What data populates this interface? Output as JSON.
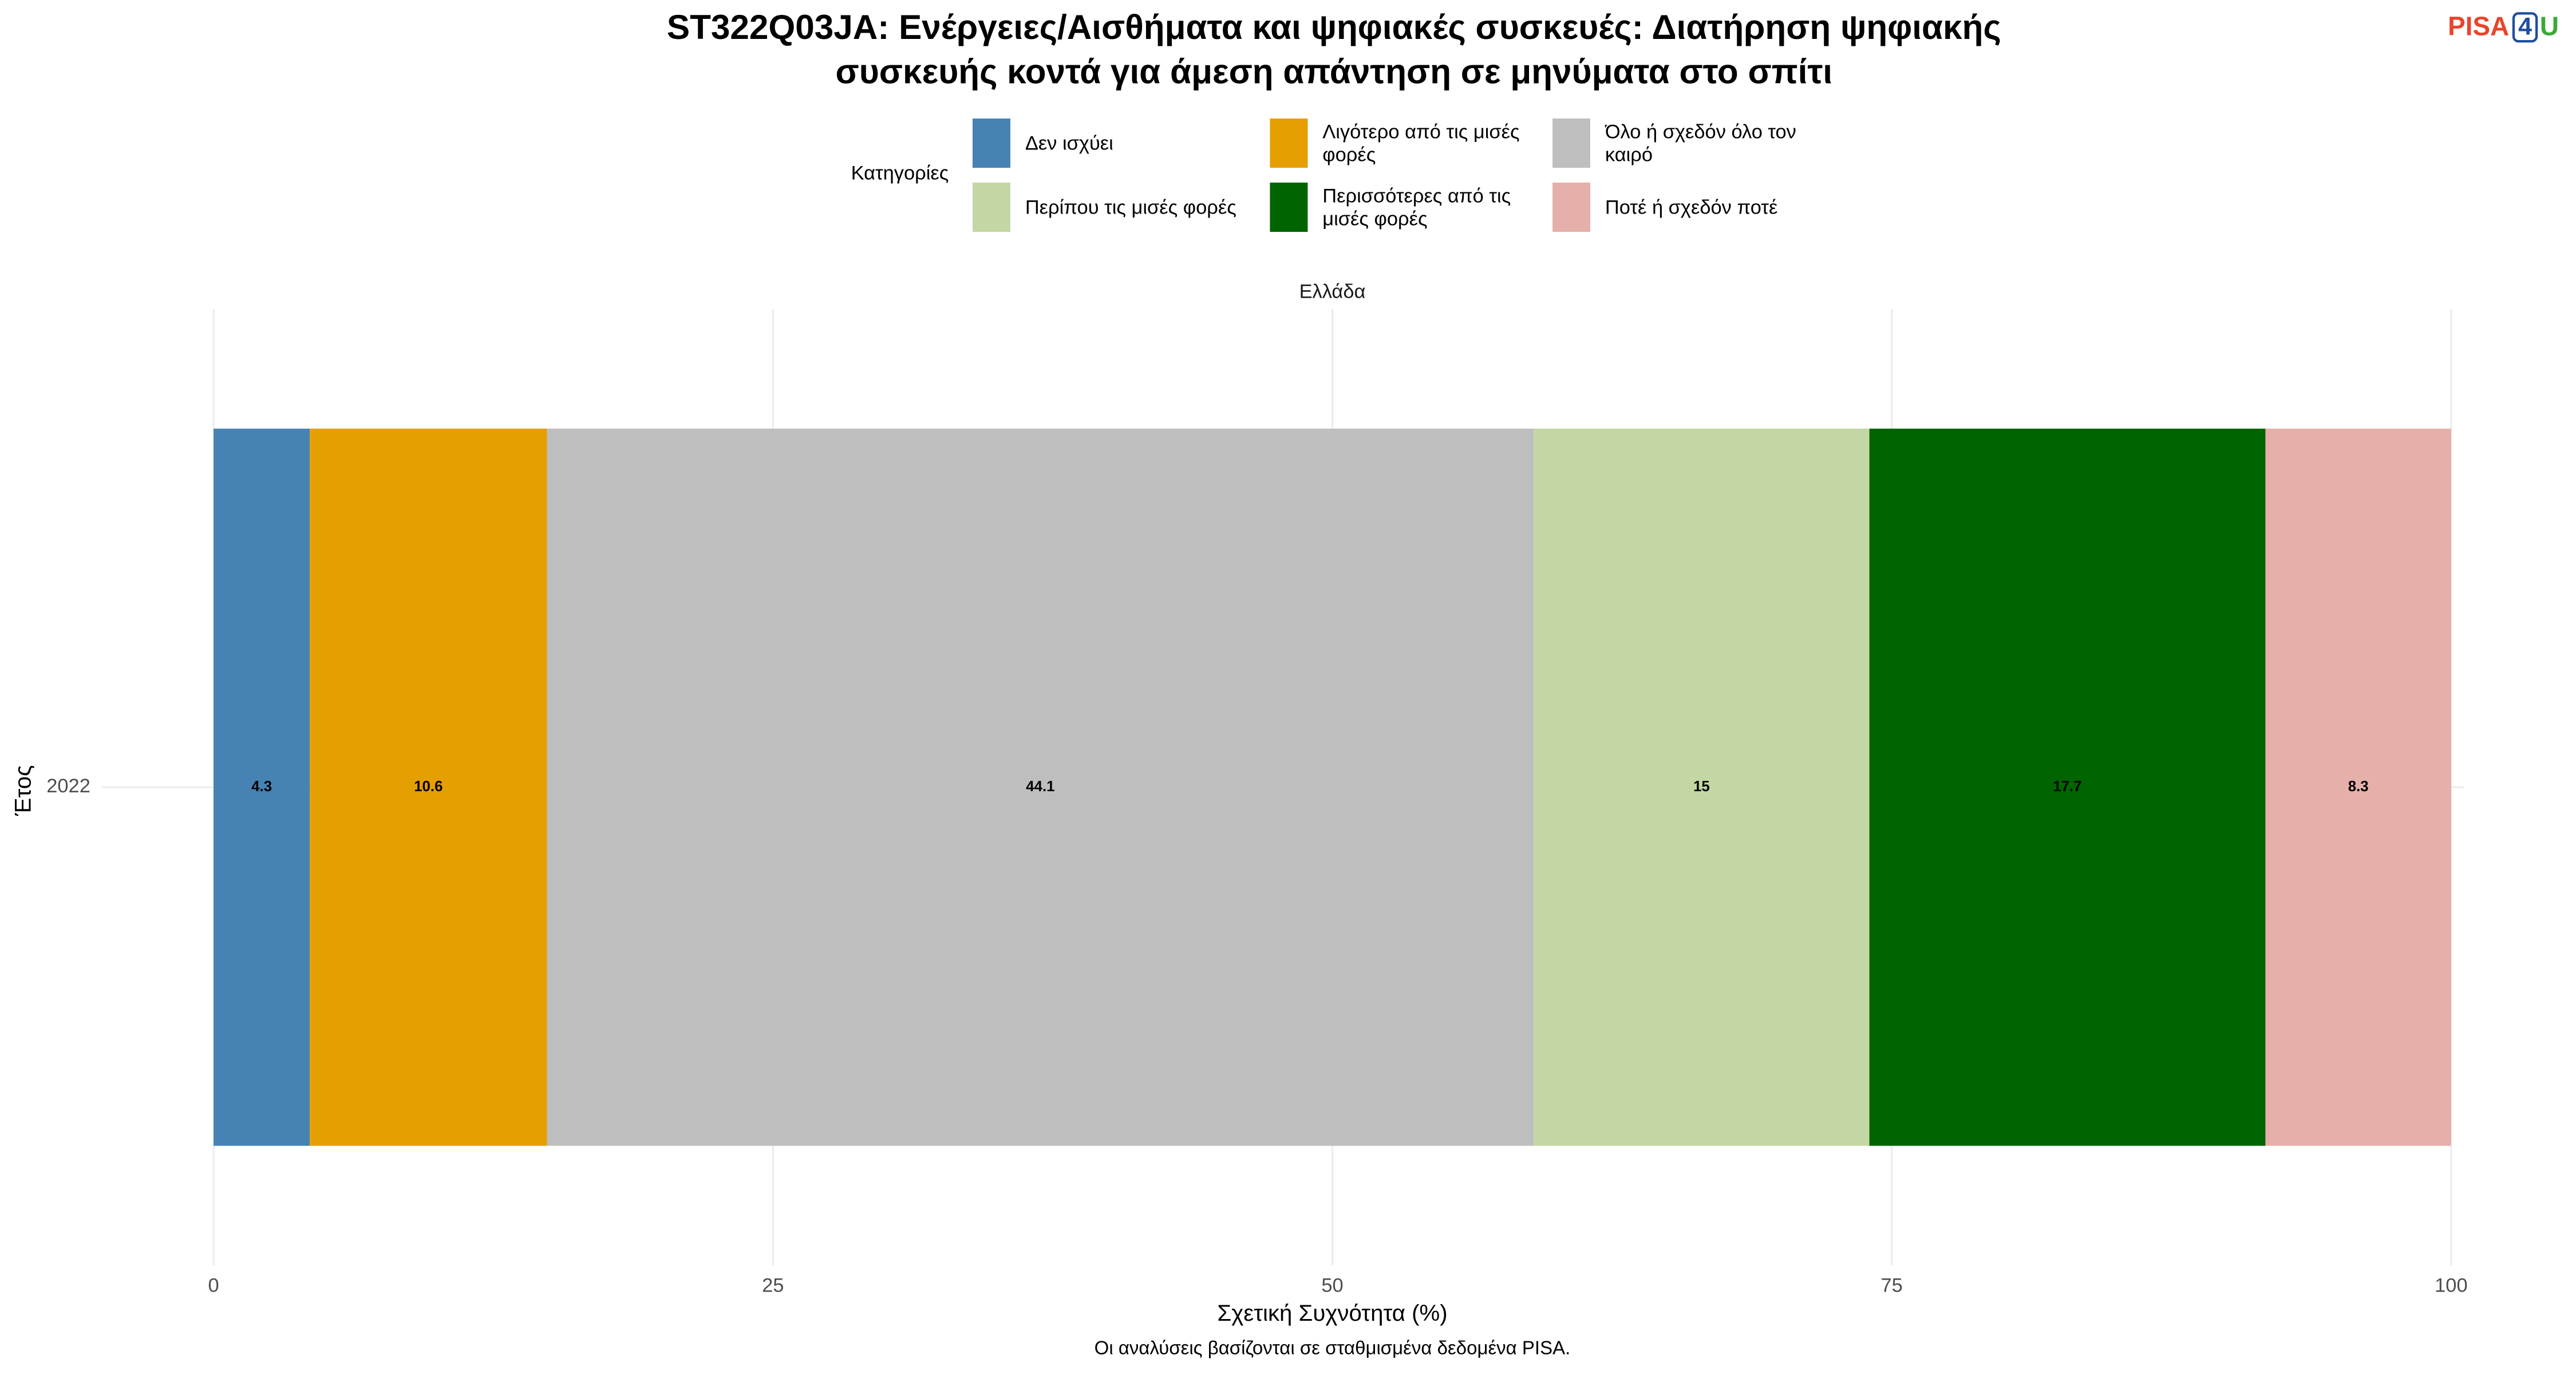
{
  "chart_data": {
    "type": "stacked-bar-horizontal",
    "title": [
      "ST322Q03JA: Ενέργειες/Αισθήματα και ψηφιακές συσκευές: Διατήρηση ψηφιακής",
      "συσκευής κοντά για άμεση απάντηση σε μηνύματα στο σπίτι"
    ],
    "logo": [
      "PISA",
      "4",
      "U"
    ],
    "legend_title": "Κατηγορίες",
    "facet": "Ελλάδα",
    "x_label": "Σχετική Συχνότητα (%)",
    "y_label": "Έτος",
    "caption": "Οι αναλύσεις βασίζονται σε σταθμισμένα δεδομένα PISA.",
    "categories": [
      "2022"
    ],
    "series": [
      {
        "name": "Δεν ισχύει",
        "color": "#4682B4",
        "values": [
          4.3
        ]
      },
      {
        "name": "Λιγότερο από τις μισές φορές",
        "color": "#E69F00",
        "values": [
          10.6
        ]
      },
      {
        "name": "Όλο ή σχεδόν όλο τον καιρό",
        "color": "#BEBEBE",
        "values": [
          44.1
        ]
      },
      {
        "name": "Περίπου τις μισές φορές",
        "color": "#C3D7A4",
        "values": [
          15
        ]
      },
      {
        "name": "Περισσότερες από τις μισές φορές",
        "color": "#006400",
        "values": [
          17.7
        ]
      },
      {
        "name": "Ποτέ ή σχεδόν ποτέ",
        "color": "#E5B0AA",
        "values": [
          8.3
        ]
      }
    ],
    "xlim": [
      0,
      100
    ],
    "xticks": [
      0,
      25,
      50,
      75,
      100
    ],
    "grid": true,
    "legend_position": "top"
  }
}
